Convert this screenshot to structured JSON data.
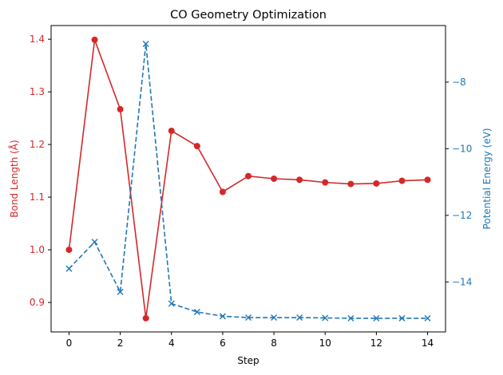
{
  "chart_data": {
    "type": "line",
    "title": "CO Geometry Optimization",
    "xlabel": "Step",
    "ylabel_left": "Bond Length (Å)",
    "ylabel_right": "Potential Energy (eV)",
    "xlim": [
      -0.7,
      14.7
    ],
    "ylim_left": [
      0.844,
      1.426
    ],
    "ylim_right": [
      -15.5,
      -6.3
    ],
    "x_ticks": [
      0,
      2,
      4,
      6,
      8,
      10,
      12,
      14
    ],
    "y_ticks_left": [
      0.9,
      1.0,
      1.1,
      1.2,
      1.3,
      1.4
    ],
    "y_ticks_left_labels": [
      "0.9",
      "1.0",
      "1.1",
      "1.2",
      "1.3",
      "1.4"
    ],
    "y_ticks_right": [
      -14,
      -12,
      -10,
      -8
    ],
    "y_ticks_right_labels": [
      "−14",
      "−12",
      "−10",
      "−8"
    ],
    "colors": {
      "left": "#d62728",
      "right": "#1f77b4",
      "axis": "#000000"
    },
    "series": [
      {
        "name": "Bond Length",
        "axis": "left",
        "style": "solid",
        "marker": "circle",
        "color": "#d62728",
        "x": [
          0,
          1,
          2,
          3,
          4,
          5,
          6,
          7,
          8,
          9,
          10,
          11,
          12,
          13,
          14
        ],
        "values": [
          1.0,
          1.399,
          1.267,
          0.87,
          1.226,
          1.197,
          1.11,
          1.14,
          1.135,
          1.133,
          1.128,
          1.125,
          1.126,
          1.131,
          1.133
        ]
      },
      {
        "name": "Potential Energy",
        "axis": "right",
        "style": "dashed",
        "marker": "x",
        "color": "#1f77b4",
        "x": [
          0,
          1,
          2,
          3,
          4,
          5,
          6,
          7,
          8,
          9,
          10,
          11,
          12,
          13,
          14
        ],
        "values": [
          -13.6,
          -12.8,
          -14.3,
          -6.85,
          -14.65,
          -14.9,
          -15.03,
          -15.07,
          -15.07,
          -15.07,
          -15.08,
          -15.09,
          -15.09,
          -15.09,
          -15.09
        ]
      }
    ]
  }
}
